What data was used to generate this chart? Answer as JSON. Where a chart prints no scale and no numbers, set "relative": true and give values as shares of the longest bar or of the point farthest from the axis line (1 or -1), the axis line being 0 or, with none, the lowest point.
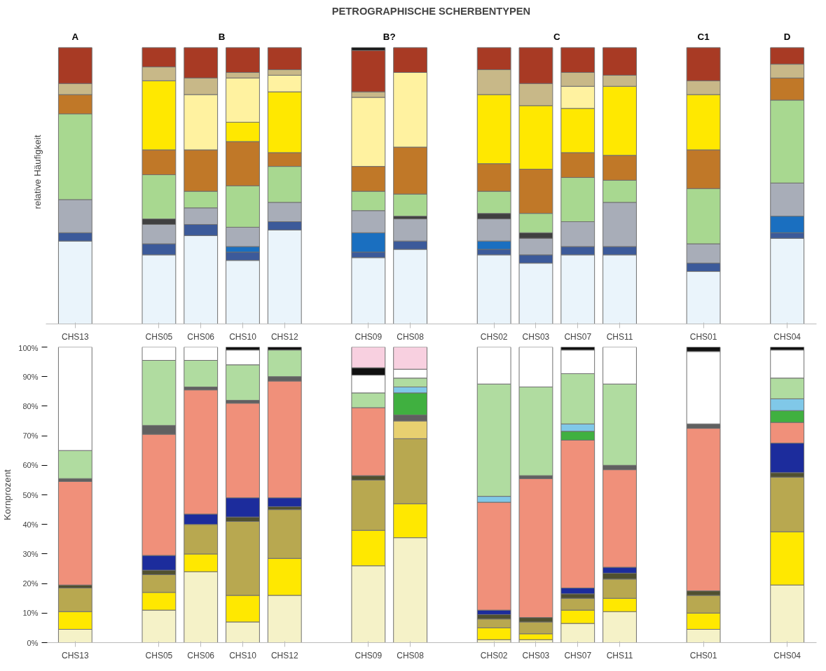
{
  "chart_data": [
    {
      "type": "bar",
      "title": "PETROGRAPHISCHE SCHERBENTYPEN",
      "ylabel": "relative Häufigkeit",
      "stacked": true,
      "relative": true,
      "grid": false,
      "categories": [
        "CHS13",
        null,
        "CHS05",
        "CHS06",
        "CHS10",
        "CHS12",
        null,
        "CHS09",
        "CHS08",
        null,
        "CHS02",
        "CHS03",
        "CHS07",
        "CHS11",
        null,
        "CHS01",
        null,
        "CHS04"
      ],
      "annotations": [
        "A",
        "B",
        "B?",
        "C",
        "C1",
        "D"
      ],
      "series": [
        {
          "color": "#eaf4fb",
          "values": [
            0.3,
            null,
            0.25,
            0.32,
            0.23,
            0.34,
            null,
            0.24,
            0.27,
            null,
            0.25,
            0.22,
            0.25,
            0.25,
            null,
            0.19,
            null,
            0.31
          ]
        },
        {
          "color": "#3c5a9a",
          "values": [
            0.03,
            null,
            0.04,
            0.04,
            0.03,
            0.03,
            null,
            0.02,
            0.03,
            null,
            0.02,
            0.03,
            0.03,
            0.03,
            null,
            0.03,
            null,
            0.02
          ]
        },
        {
          "color": "#1a6fc0",
          "values": [
            null,
            null,
            null,
            null,
            0.02,
            null,
            null,
            0.07,
            null,
            null,
            0.03,
            null,
            null,
            null,
            null,
            null,
            null,
            0.06
          ]
        },
        {
          "color": "#a8adb8",
          "values": [
            0.12,
            null,
            0.07,
            0.06,
            0.07,
            0.07,
            null,
            0.08,
            0.08,
            null,
            0.08,
            0.06,
            0.09,
            0.16,
            null,
            0.07,
            null,
            0.12
          ]
        },
        {
          "color": "#404040",
          "values": [
            null,
            null,
            0.02,
            null,
            null,
            null,
            null,
            null,
            0.01,
            null,
            0.02,
            0.02,
            null,
            null,
            null,
            null,
            null,
            null
          ]
        },
        {
          "color": "#a8d890",
          "values": [
            0.31,
            null,
            0.16,
            0.06,
            0.15,
            0.13,
            null,
            0.07,
            0.08,
            null,
            0.08,
            0.07,
            0.16,
            0.08,
            null,
            0.2,
            null,
            0.3
          ]
        },
        {
          "color": "#c07828",
          "values": [
            0.07,
            null,
            0.09,
            0.15,
            0.16,
            0.05,
            null,
            0.09,
            0.17,
            null,
            0.1,
            0.16,
            0.09,
            0.09,
            null,
            0.14,
            null,
            0.08
          ]
        },
        {
          "color": "#ffe800",
          "values": [
            null,
            null,
            0.25,
            null,
            0.07,
            0.22,
            null,
            null,
            null,
            null,
            0.25,
            0.23,
            0.16,
            0.25,
            null,
            0.2,
            null,
            null
          ]
        },
        {
          "color": "#fff2a0",
          "values": [
            null,
            null,
            null,
            0.2,
            0.16,
            0.06,
            null,
            0.25,
            0.27,
            null,
            null,
            null,
            0.08,
            null,
            null,
            null,
            null,
            null
          ]
        },
        {
          "color": "#c8b888",
          "values": [
            0.04,
            null,
            0.05,
            0.06,
            0.02,
            0.02,
            null,
            0.02,
            null,
            null,
            0.09,
            0.08,
            0.05,
            0.04,
            null,
            0.05,
            null,
            0.05
          ]
        },
        {
          "color": "#a83a24",
          "values": [
            0.13,
            null,
            0.07,
            0.11,
            0.09,
            0.08,
            null,
            0.15,
            0.09,
            null,
            0.08,
            0.13,
            0.09,
            0.1,
            null,
            0.12,
            null,
            0.06
          ]
        },
        {
          "color": "#111111",
          "values": [
            null,
            null,
            null,
            null,
            null,
            null,
            null,
            0.01,
            null,
            null,
            null,
            null,
            null,
            null,
            null,
            null,
            null,
            null
          ]
        }
      ]
    },
    {
      "type": "bar",
      "ylabel": "Kornprozent",
      "stacked": true,
      "grid": false,
      "categories": [
        "CHS13",
        null,
        "CHS05",
        "CHS06",
        "CHS10",
        "CHS12",
        null,
        "CHS09",
        "CHS08",
        null,
        "CHS02",
        "CHS03",
        "CHS07",
        "CHS11",
        null,
        "CHS01",
        null,
        "CHS04"
      ],
      "ylim": [
        0,
        100
      ],
      "yticks": [
        {
          "value": 0,
          "label": "0%"
        },
        {
          "value": 10,
          "label": "10%"
        },
        {
          "value": 20,
          "label": "20%"
        },
        {
          "value": 30,
          "label": "30%"
        },
        {
          "value": 40,
          "label": "40%"
        },
        {
          "value": 50,
          "label": "50%"
        },
        {
          "value": 60,
          "label": "60%"
        },
        {
          "value": 70,
          "label": "70%"
        },
        {
          "value": 80,
          "label": "80%"
        },
        {
          "value": 90,
          "label": "90%"
        },
        {
          "value": 100,
          "label": "100%"
        }
      ],
      "series": [
        {
          "color": "#f5f2c8",
          "values": [
            4.5,
            null,
            11,
            24,
            7,
            16,
            null,
            26,
            35.5,
            null,
            1,
            1,
            6.5,
            10.5,
            null,
            4.5,
            null,
            19.5
          ]
        },
        {
          "color": "#ffe800",
          "values": [
            6,
            null,
            6,
            6,
            9,
            12.5,
            null,
            12,
            11.5,
            null,
            4,
            2,
            4.5,
            4.5,
            null,
            5.5,
            null,
            18
          ]
        },
        {
          "color": "#b8a850",
          "values": [
            8,
            null,
            6,
            10,
            25,
            16.5,
            null,
            17,
            22,
            null,
            3,
            4,
            4,
            6.5,
            null,
            6,
            null,
            18.5
          ]
        },
        {
          "color": "#505030",
          "values": [
            1,
            null,
            1.5,
            null,
            1.5,
            1,
            null,
            1.5,
            null,
            null,
            1.5,
            1.5,
            1.5,
            2,
            null,
            1.5,
            null,
            1.5
          ]
        },
        {
          "color": "#e8d070",
          "values": [
            null,
            null,
            null,
            null,
            null,
            null,
            null,
            null,
            6,
            null,
            null,
            null,
            null,
            null,
            null,
            null,
            null,
            null
          ]
        },
        {
          "color": "#1c2c9c",
          "values": [
            null,
            null,
            5,
            3.5,
            6.5,
            3,
            null,
            null,
            null,
            null,
            1.5,
            null,
            2,
            2,
            null,
            null,
            null,
            10
          ]
        },
        {
          "color": "#f0907a",
          "values": [
            35,
            null,
            41,
            42,
            32,
            39.5,
            null,
            23,
            null,
            null,
            36.5,
            47,
            50,
            33,
            null,
            55,
            null,
            7
          ]
        },
        {
          "color": "#606060",
          "values": [
            1,
            null,
            3,
            1,
            1,
            1.5,
            null,
            null,
            2,
            null,
            null,
            1,
            null,
            1.5,
            null,
            1.5,
            null,
            null
          ]
        },
        {
          "color": "#40b040",
          "values": [
            null,
            null,
            null,
            null,
            null,
            null,
            null,
            null,
            7.5,
            null,
            null,
            null,
            3,
            null,
            null,
            null,
            null,
            4
          ]
        },
        {
          "color": "#80c8e8",
          "values": [
            null,
            null,
            null,
            null,
            null,
            null,
            null,
            null,
            2,
            null,
            2,
            null,
            2.5,
            null,
            null,
            null,
            null,
            4
          ]
        },
        {
          "color": "#b0dca0",
          "values": [
            9.5,
            null,
            22,
            9,
            12,
            9,
            null,
            5,
            3,
            null,
            38,
            30,
            17,
            27.5,
            null,
            null,
            null,
            7
          ]
        },
        {
          "color": "#ffffff",
          "values": [
            35,
            null,
            4.5,
            4.5,
            5,
            null,
            null,
            6,
            3,
            null,
            12.5,
            13.5,
            8,
            12.5,
            null,
            24.5,
            null,
            9.5
          ]
        },
        {
          "color": "#111111",
          "values": [
            null,
            null,
            null,
            null,
            1,
            1,
            null,
            2.5,
            null,
            null,
            null,
            null,
            1,
            null,
            null,
            1.5,
            null,
            1
          ]
        },
        {
          "color": "#f8d0e0",
          "values": [
            null,
            null,
            null,
            null,
            null,
            null,
            null,
            7,
            7.5,
            null,
            null,
            null,
            null,
            null,
            null,
            null,
            null,
            null
          ]
        }
      ]
    }
  ]
}
